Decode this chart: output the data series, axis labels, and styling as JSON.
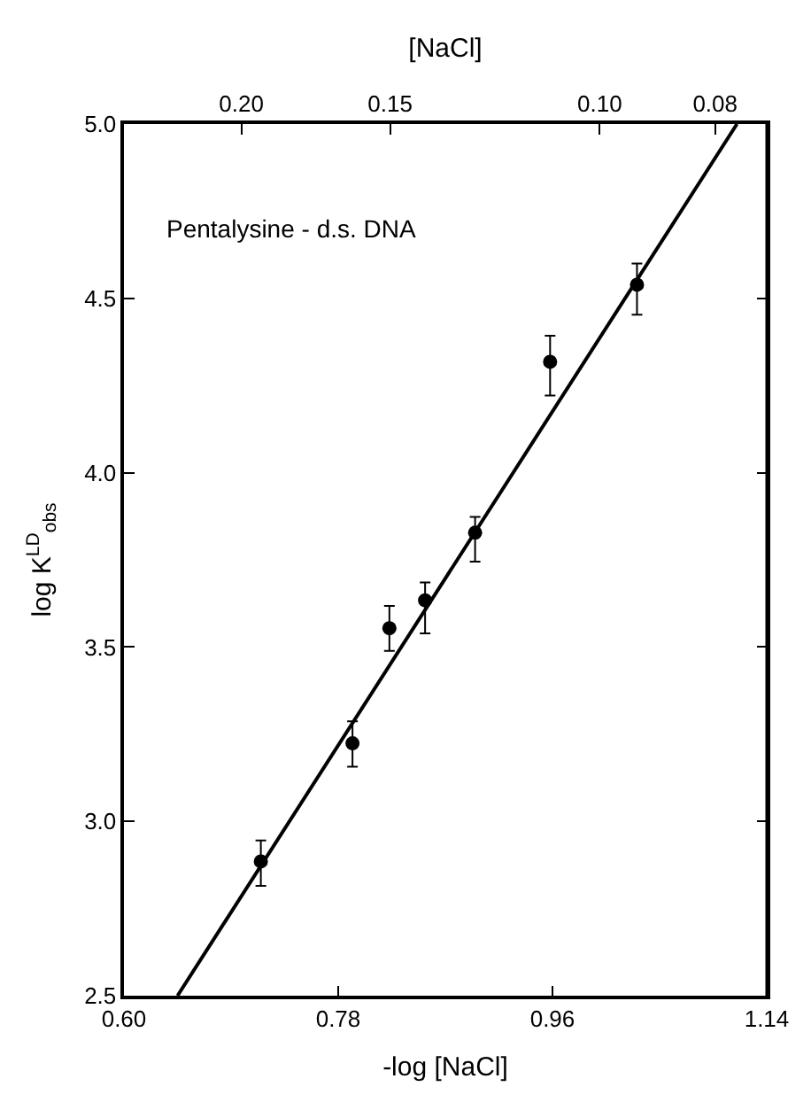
{
  "chart_data": {
    "type": "scatter",
    "xlabel": "-log [NaCl]",
    "ylabel": "log K$^{LD}$$_{obs}$",
    "x2label": "[NaCl]",
    "annotations": [
      "Pentalysine - d.s. DNA"
    ],
    "series": [
      {
        "color": "#000000",
        "marker": "circle",
        "x": [
          0.715,
          0.792,
          0.823,
          0.853,
          0.895,
          0.958,
          1.031
        ],
        "values": [
          2.885,
          3.224,
          3.554,
          3.634,
          3.828,
          4.318,
          4.539
        ],
        "errors": [
          [
            2.815,
            2.945
          ],
          [
            3.157,
            3.287
          ],
          [
            3.489,
            3.618
          ],
          [
            3.539,
            3.685
          ],
          [
            3.745,
            3.873
          ],
          [
            4.221,
            4.393
          ],
          [
            4.453,
            4.6
          ]
        ]
      },
      {
        "type": "line",
        "color": "#000000",
        "line_style": "solid",
        "x": [
          0.645,
          1.115
        ],
        "values": [
          2.5,
          5.0
        ]
      }
    ],
    "xlim": [
      0.6,
      1.14
    ],
    "xticks": [
      {
        "value": 0.6,
        "label": "0.60"
      },
      0.78,
      0.96,
      1.14
    ],
    "x2lim": [
      0.251,
      0.0724
    ],
    "x2ticks": [
      {
        "value": 0.2,
        "label": "0.20"
      },
      0.15,
      {
        "value": 0.1,
        "label": "0.10"
      },
      0.08
    ],
    "log": "x2",
    "ylim": [
      2.5,
      5.0
    ],
    "yticks": [
      2.5,
      {
        "value": 3.0,
        "label": "3.0"
      },
      3.5,
      {
        "value": 4.0,
        "label": "4.0"
      },
      4.5,
      {
        "value": 5.0,
        "label": "5.0"
      }
    ],
    "legend": false
  }
}
